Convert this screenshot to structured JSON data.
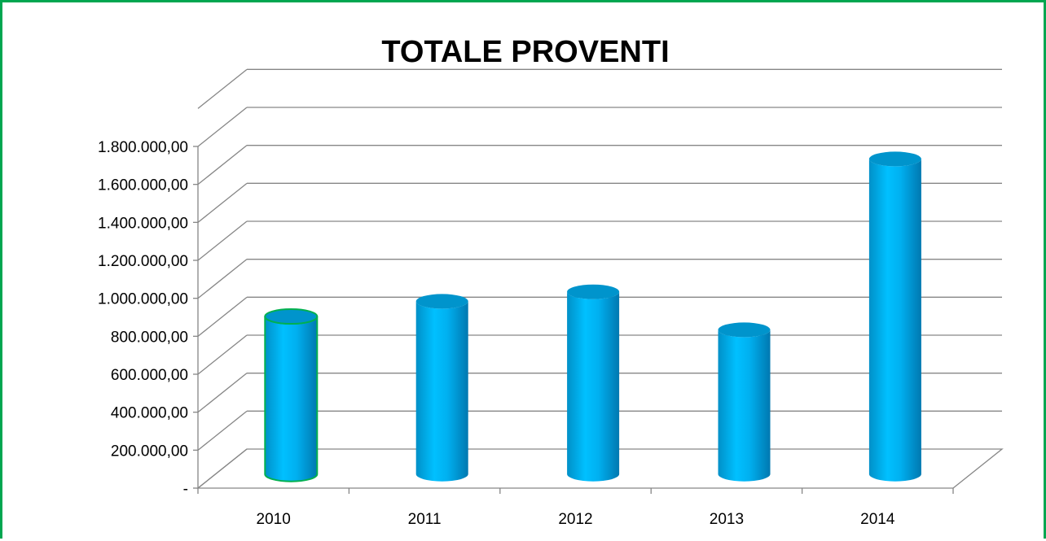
{
  "chart_data": {
    "type": "bar",
    "title": "TOTALE PROVENTI",
    "categories": [
      "2010",
      "2011",
      "2012",
      "2013",
      "2014"
    ],
    "series": [
      {
        "values": [
          830000,
          910000,
          960000,
          760000,
          1660000
        ]
      }
    ],
    "ylim": [
      0,
      1800000
    ],
    "yticks": [
      0,
      200000,
      400000,
      600000,
      800000,
      1000000,
      1200000,
      1400000,
      1600000,
      1800000
    ],
    "ytick_labels": [
      "-",
      "200.000,00",
      "400.000,00",
      "600.000,00",
      "800.000,00",
      "1.000.000,00",
      "1.200.000,00",
      "1.400.000,00",
      "1.600.000,00",
      "1.800.000,00"
    ],
    "xlabel": "",
    "ylabel": "",
    "grid": true,
    "legend": "none",
    "bar_shape": "3d-cylinder",
    "colors": {
      "bar": "#00b0f0",
      "bar_top": "#0094cc",
      "selected_outline": "#00b050",
      "grid": "#868686",
      "frame": "#00a650"
    }
  }
}
